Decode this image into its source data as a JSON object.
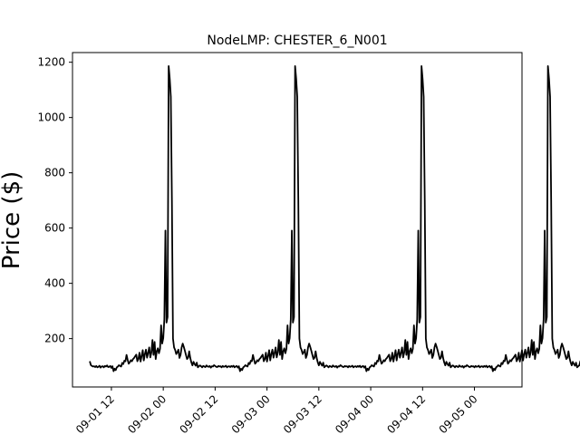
{
  "chart_data": {
    "type": "line",
    "title": "NodeLMP: CHESTER_6_N001",
    "xlabel": "",
    "ylabel": "Price ($)",
    "x_axis": "datetime (hours)",
    "xlim": [
      "2025-09-01 03:00",
      "2025-09-05 11:00"
    ],
    "ylim": [
      25,
      1235
    ],
    "y_ticks": [
      200,
      400,
      600,
      800,
      1000,
      1200
    ],
    "x_ticks": [
      {
        "t": "2025-09-01 12:00",
        "label": "09-01 12"
      },
      {
        "t": "2025-09-02 00:00",
        "label": "09-02 00"
      },
      {
        "t": "2025-09-02 12:00",
        "label": "09-02 12"
      },
      {
        "t": "2025-09-03 00:00",
        "label": "09-03 00"
      },
      {
        "t": "2025-09-03 12:00",
        "label": "09-03 12"
      },
      {
        "t": "2025-09-04 00:00",
        "label": "09-04 00"
      },
      {
        "t": "2025-09-04 12:00",
        "label": "09-04 12"
      },
      {
        "t": "2025-09-05 00:00",
        "label": "09-05 00"
      }
    ],
    "grid": false,
    "line_color": "#000000",
    "series": [
      {
        "name": "",
        "start": "2025-09-01 07:00",
        "step_minutes": 15,
        "values": [
          118,
          104,
          101,
          99,
          100,
          97,
          101,
          96,
          98,
          102,
          95,
          99,
          100,
          96,
          101,
          99,
          103,
          97,
          98,
          101,
          94,
          100,
          82,
          91,
          86,
          96,
          99,
          104,
          101,
          99,
          112,
          108,
          120,
          118,
          141,
          124,
          109,
          114,
          122,
          118,
          126,
          130,
          136,
          142,
          118,
          126,
          149,
          117,
          137,
          158,
          121,
          144,
          160,
          131,
          148,
          168,
          132,
          150,
          195,
          141,
          188,
          126,
          154,
          165,
          147,
          163,
          248,
          182,
          202,
          270,
          591,
          258,
          278,
          1186,
          1140,
          1075,
          700,
          200,
          168,
          159,
          144,
          151,
          160,
          130,
          141,
          168,
          182,
          170,
          156,
          141,
          126,
          131,
          154,
          130,
          114,
          103,
          116,
          108,
          102,
          113,
          96,
          100,
          103,
          100,
          96,
          101,
          99,
          97,
          103,
          99,
          98,
          101,
          95,
          100,
          99,
          104,
          101,
          98,
          97,
          101,
          99,
          100,
          96,
          101,
          98,
          99,
          102,
          96,
          99,
          100,
          97,
          101,
          98,
          102,
          96,
          99,
          101,
          95,
          100,
          82,
          91,
          86,
          96,
          99,
          104,
          101,
          99,
          112,
          108,
          120,
          118,
          141,
          124,
          109,
          114,
          122,
          118,
          126,
          130,
          136,
          142,
          118,
          126,
          149,
          117,
          137,
          158,
          121,
          144,
          160,
          131,
          148,
          168,
          132,
          150,
          195,
          141,
          188,
          126,
          154,
          165,
          147,
          163,
          248,
          182,
          202,
          270,
          591,
          258,
          278,
          1186,
          1140,
          1075,
          700,
          200,
          168,
          159,
          144,
          151,
          160,
          130,
          141,
          168,
          182,
          170,
          156,
          141,
          126,
          131,
          154,
          130,
          114,
          103,
          116,
          108,
          102,
          113,
          96,
          100,
          103,
          100,
          96,
          101,
          99,
          97,
          103,
          99,
          98,
          101,
          95,
          100,
          99,
          104,
          101,
          98,
          97,
          101,
          99,
          100,
          96,
          101,
          98,
          99,
          102,
          96,
          99,
          100,
          97,
          101,
          98,
          102,
          96,
          99,
          101,
          95,
          100,
          82,
          91,
          86,
          96,
          99,
          104,
          101,
          99,
          112,
          108,
          120,
          118,
          141,
          124,
          109,
          114,
          122,
          118,
          126,
          130,
          136,
          142,
          118,
          126,
          149,
          117,
          137,
          158,
          121,
          144,
          160,
          131,
          148,
          168,
          132,
          150,
          195,
          141,
          188,
          126,
          154,
          165,
          147,
          163,
          248,
          182,
          202,
          270,
          591,
          258,
          278,
          1186,
          1140,
          1075,
          700,
          200,
          168,
          159,
          144,
          151,
          160,
          130,
          141,
          168,
          182,
          170,
          156,
          141,
          126,
          131,
          154,
          130,
          114,
          103,
          116,
          108,
          102,
          113,
          96,
          100,
          103,
          100,
          96,
          101,
          99,
          97,
          103,
          99,
          98,
          101,
          95,
          100,
          99,
          104,
          101,
          98,
          97,
          101,
          99,
          100,
          96,
          101,
          98,
          99,
          102,
          96,
          99,
          100,
          97,
          101,
          98,
          102,
          96,
          99,
          101,
          95,
          100,
          82,
          91,
          86,
          96,
          99,
          104,
          101,
          99,
          112,
          108,
          120,
          118,
          141,
          124,
          109,
          114,
          122,
          118,
          126,
          130,
          136,
          142,
          118,
          126,
          149,
          117,
          137,
          158,
          121,
          144,
          160,
          131,
          148,
          168,
          132,
          150,
          195,
          141,
          188,
          126,
          154,
          165,
          147,
          163,
          248,
          182,
          202,
          270,
          591,
          258,
          278,
          1186,
          1140,
          1075,
          700,
          200,
          168,
          159,
          144,
          151,
          160,
          130,
          141,
          168,
          182,
          170,
          156,
          141,
          126,
          131,
          154,
          130,
          114,
          103,
          116,
          108,
          102,
          113,
          96,
          100,
          103,
          118,
          106,
          128,
          112,
          104
        ]
      }
    ]
  }
}
